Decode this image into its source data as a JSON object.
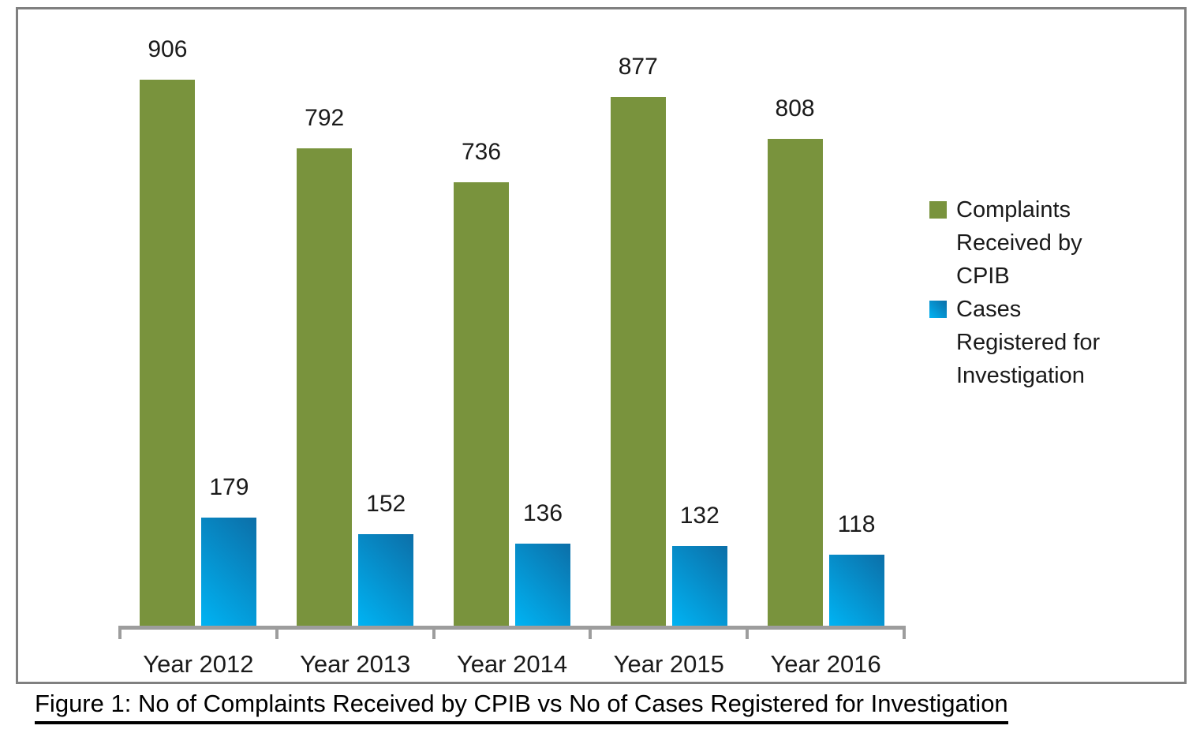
{
  "figure": {
    "caption": "Figure 1: No of Complaints Received by CPIB vs No of Cases Registered for Investigation"
  },
  "chart_data": {
    "type": "bar",
    "categories": [
      "Year 2012",
      "Year 2013",
      "Year 2014",
      "Year 2015",
      "Year 2016"
    ],
    "series": [
      {
        "name": "Complaints Received by CPIB",
        "values": [
          906,
          792,
          736,
          877,
          808
        ]
      },
      {
        "name": "Cases Registered for Investigation",
        "values": [
          179,
          152,
          136,
          132,
          118
        ]
      }
    ],
    "title": "",
    "xlabel": "",
    "ylabel": "",
    "ylim": [
      0,
      1000
    ],
    "grid": false,
    "y_axis_visible": false,
    "data_labels": true,
    "legend_position": "right"
  },
  "colors": {
    "complaints_green": "#79933D",
    "cases_blue_light": "#00B3F3",
    "cases_blue_dark": "#0C6FA8",
    "axis_gray": "#9D9D9D",
    "box_border_gray": "#808080",
    "text": "#1a1a1a"
  }
}
